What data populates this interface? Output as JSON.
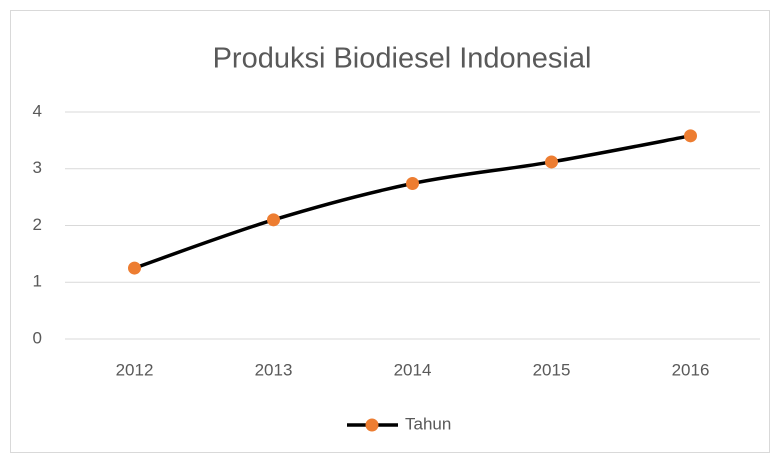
{
  "chart_data": {
    "type": "line",
    "title": "Produksi Biodiesel Indonesial",
    "categories": [
      "2012",
      "2013",
      "2014",
      "2015",
      "2016"
    ],
    "series": [
      {
        "name": "Tahun",
        "color": "#000000",
        "marker_color": "#ED7D31",
        "values": [
          1.25,
          2.1,
          2.74,
          3.12,
          3.58
        ]
      }
    ],
    "ylim": [
      0,
      4
    ],
    "yticks": [
      0,
      1,
      2,
      3,
      4
    ],
    "grid": true,
    "smooth": true,
    "legend": "bottom"
  }
}
